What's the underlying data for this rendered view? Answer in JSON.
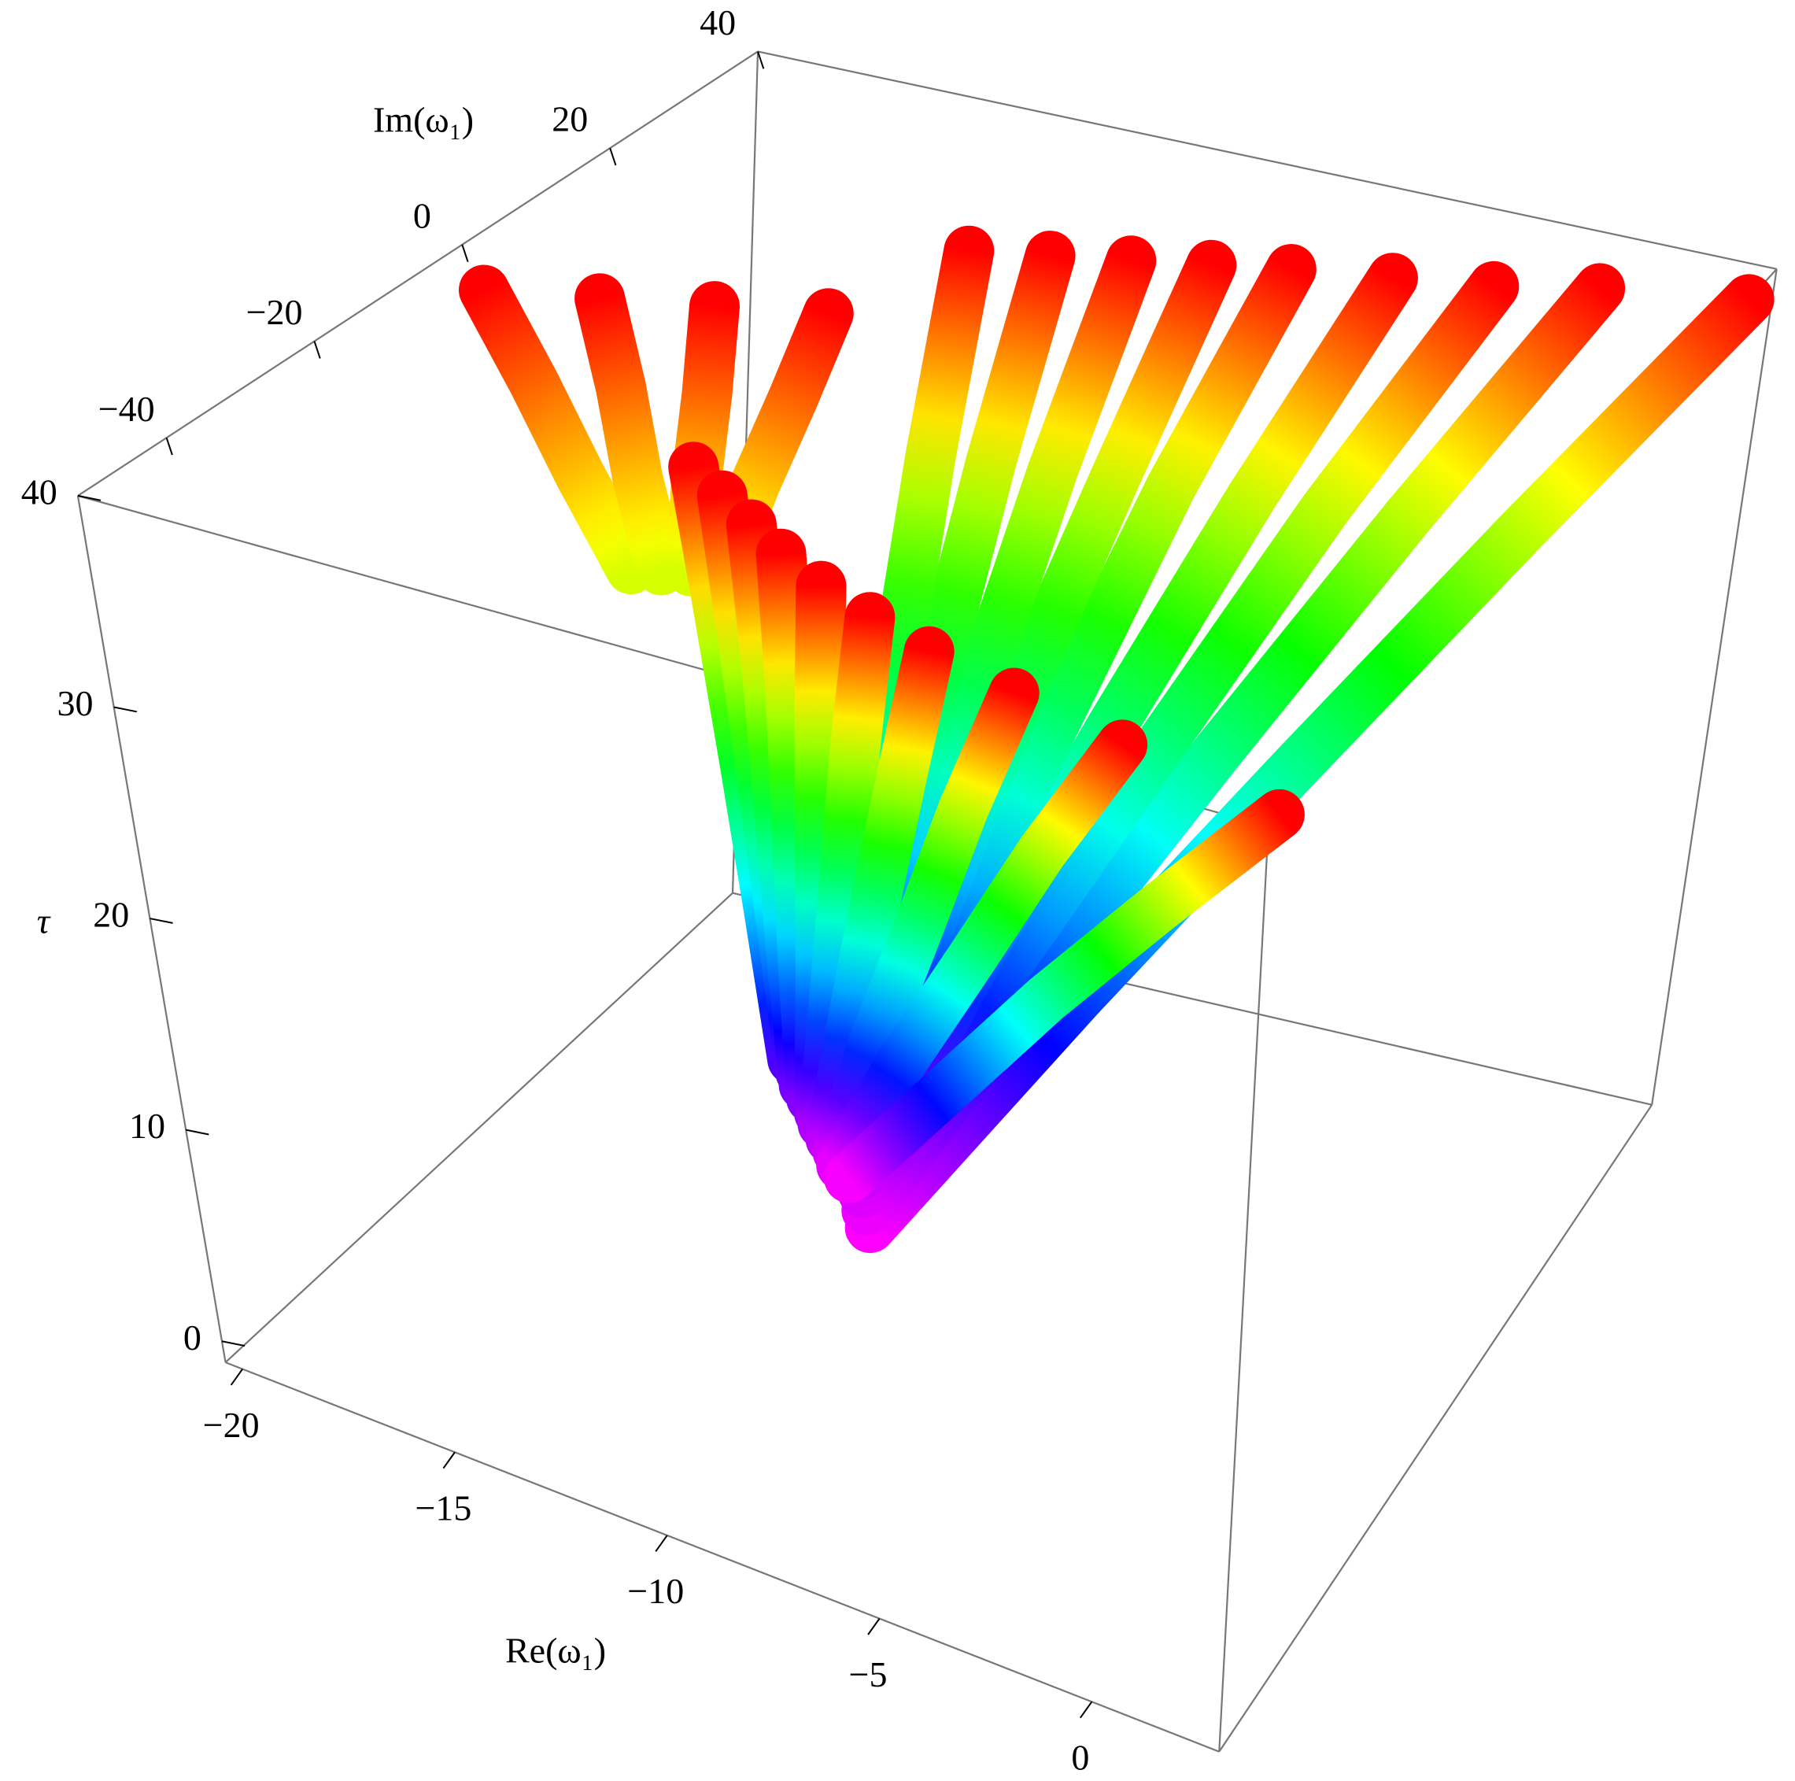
{
  "chart_data": {
    "type": "scatter3d",
    "xlabel": "Re(ω₁)",
    "ylabel": "Im(ω₁)",
    "zlabel": "τ",
    "xlim": [
      -20.4,
      3
    ],
    "ylim": [
      -52,
      40
    ],
    "zlim": [
      -1,
      40
    ],
    "xticks": [
      {
        "value": -20,
        "label": "−20"
      },
      {
        "value": -15,
        "label": "−15"
      },
      {
        "value": -10,
        "label": "−10"
      },
      {
        "value": -5,
        "label": "−5"
      },
      0
    ],
    "yticks": [
      {
        "value": -40,
        "label": "−40"
      },
      {
        "value": -20,
        "label": "−20"
      },
      0,
      20,
      40
    ],
    "zticks": [
      0,
      10,
      20,
      30,
      40
    ],
    "colormap": [
      "#ff00ff",
      "#0000ff",
      "#00ffff",
      "#00ff00",
      "#ffff00",
      "#ff0000"
    ],
    "series": [
      {
        "x": [
          -7.4,
          -4.8,
          -2.2,
          0.4,
          3
        ],
        "y": [
          -33,
          -16,
          1,
          18,
          35
        ],
        "z": [
          9.8,
          17.4,
          24.9,
          32.5,
          40
        ]
      },
      {
        "x": [
          -7.6,
          -5.7,
          -3.8,
          -1.9,
          0
        ],
        "y": [
          -32,
          -16,
          0,
          16,
          32
        ],
        "z": [
          10.2,
          17.7,
          25.1,
          32.6,
          40
        ]
      },
      {
        "x": [
          -7.8,
          -6.4,
          -4.9,
          -3.5,
          -2
        ],
        "y": [
          -31,
          -16,
          -1,
          14,
          29
        ],
        "z": [
          10.6,
          18,
          25.3,
          32.7,
          40
        ]
      },
      {
        "x": [
          -8,
          -7,
          -6,
          -5,
          -4
        ],
        "y": [
          -30,
          -15.8,
          -1.5,
          12.8,
          27
        ],
        "z": [
          11,
          18.3,
          25.5,
          32.8,
          40
        ]
      },
      {
        "x": [
          -8.2,
          -7.7,
          -7.1,
          -6.6,
          -6
        ],
        "y": [
          -29,
          -15.5,
          -2,
          11.5,
          25
        ],
        "z": [
          11.4,
          18.6,
          25.7,
          32.9,
          40
        ]
      },
      {
        "x": [
          -8.4,
          -8.2,
          -8,
          -7.7,
          -7.5
        ],
        "y": [
          -28,
          -15.3,
          -2.5,
          10.3,
          23
        ],
        "z": [
          11.8,
          18.9,
          25.9,
          33,
          40
        ]
      },
      {
        "x": [
          -8.6,
          -8.7,
          -8.8,
          -8.9,
          -9
        ],
        "y": [
          -27,
          -15,
          -3,
          9,
          21
        ],
        "z": [
          12.2,
          19.2,
          26.1,
          33.1,
          40
        ]
      },
      {
        "x": [
          -8.8,
          -9.2,
          -9.7,
          -10.1,
          -10.5
        ],
        "y": [
          -26,
          -14.8,
          -3.5,
          7.8,
          19
        ],
        "z": [
          12.6,
          19.5,
          26.3,
          33.2,
          40
        ]
      },
      {
        "x": [
          -9,
          -9.75,
          -10.5,
          -11.25,
          -12
        ],
        "y": [
          -25,
          -14.5,
          -4,
          6.5,
          17
        ],
        "z": [
          13,
          19.75,
          26.5,
          33.25,
          40
        ]
      },
      {
        "x": [
          -14,
          -15.7,
          -17.3,
          -19
        ],
        "y": [
          -20,
          -15.3,
          -10.7,
          -6
        ],
        "z": [
          33,
          35.3,
          37.7,
          40
        ]
      },
      {
        "x": [
          -13.5,
          -14.7,
          -15.8,
          -17
        ],
        "y": [
          -19,
          -13.7,
          -8.3,
          -3
        ],
        "z": [
          33,
          35.3,
          37.7,
          40
        ]
      },
      {
        "x": [
          -13,
          -13.7,
          -14.3,
          -15
        ],
        "y": [
          -18,
          -12,
          -6,
          0
        ],
        "z": [
          33,
          35.3,
          37.7,
          40
        ]
      },
      {
        "x": [
          -12.5,
          -12.7,
          -12.8,
          -13
        ],
        "y": [
          -17,
          -10.3,
          -3.7,
          3
        ],
        "z": [
          33,
          35.3,
          37.7,
          40
        ]
      },
      {
        "x": [
          -10,
          -10.5,
          -11,
          -11.5,
          -12
        ],
        "y": [
          -26,
          -25.5,
          -25,
          -24.5,
          -24
        ],
        "z": [
          14,
          20.5,
          27,
          33.5,
          40
        ]
      },
      {
        "x": [
          -9.8,
          -10.1,
          -10.4,
          -10.7,
          -11
        ],
        "y": [
          -26.2,
          -26.4,
          -26.6,
          -26.8,
          -27
        ],
        "z": [
          13.6,
          20.2,
          26.8,
          33.4,
          40
        ]
      },
      {
        "x": [
          -9.7,
          -9.8,
          -9.85,
          -9.9,
          -10
        ],
        "y": [
          -26.4,
          -27.3,
          -28.2,
          -29.1,
          -30
        ],
        "z": [
          13.1,
          19.8,
          26.6,
          33.3,
          40
        ]
      },
      {
        "x": [
          -9.5,
          -9.4,
          -9.25,
          -9.1,
          -9
        ],
        "y": [
          -26.7,
          -28.3,
          -29.9,
          -31.4,
          -33
        ],
        "z": [
          12.7,
          19.5,
          26.4,
          33.2,
          40
        ]
      },
      {
        "x": [
          -9.3,
          -8.9,
          -8.55,
          -8.2,
          -7.8
        ],
        "y": [
          -26.9,
          -29.2,
          -31.5,
          -33.7,
          -36
        ],
        "z": [
          12.2,
          19.2,
          26.1,
          33.1,
          40
        ]
      },
      {
        "x": [
          -9.2,
          -8.5,
          -7.85,
          -7.2,
          -6.5
        ],
        "y": [
          -27.1,
          -30,
          -32.8,
          -35.7,
          -38.5
        ],
        "z": [
          11.8,
          18.9,
          25.9,
          33,
          40
        ]
      },
      {
        "x": [
          -9,
          -8,
          -7,
          -6,
          -5
        ],
        "y": [
          -27.3,
          -30.7,
          -34.2,
          -37.6,
          -41
        ],
        "z": [
          11.3,
          18.5,
          25.7,
          32.8,
          40
        ]
      },
      {
        "x": [
          -8.8,
          -7.4,
          -5.9,
          -4.5,
          -3
        ],
        "y": [
          -27.6,
          -31.6,
          -35.6,
          -39.5,
          -43.5
        ],
        "z": [
          10.9,
          18.2,
          25.5,
          32.7,
          40
        ]
      },
      {
        "x": [
          -8.7,
          -6.7,
          -4.6,
          -2.6,
          -0.5
        ],
        "y": [
          -27.8,
          -32.5,
          -37.2,
          -41.8,
          -46.5
        ],
        "z": [
          10.4,
          17.8,
          25.2,
          32.6,
          40
        ]
      },
      {
        "x": [
          -8.5,
          -5.6,
          -2.8,
          0.1,
          3
        ],
        "y": [
          -28,
          -33.5,
          -39,
          -44.5,
          -50
        ],
        "z": [
          10,
          17.5,
          25,
          32.5,
          40
        ]
      }
    ]
  }
}
